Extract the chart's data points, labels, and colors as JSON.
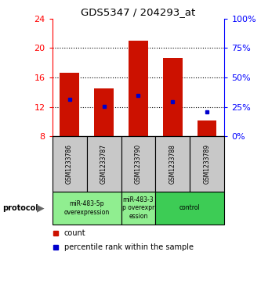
{
  "title": "GDS5347 / 204293_at",
  "samples": [
    "GSM1233786",
    "GSM1233787",
    "GSM1233790",
    "GSM1233788",
    "GSM1233789"
  ],
  "bar_bottom": 8,
  "bar_tops": [
    16.6,
    14.5,
    21.0,
    18.6,
    10.2
  ],
  "percentile_values": [
    13.0,
    12.05,
    13.55,
    12.75,
    11.35
  ],
  "ylim": [
    8,
    24
  ],
  "yticks_left": [
    8,
    12,
    16,
    20,
    24
  ],
  "yticks_right": [
    0,
    25,
    50,
    75,
    100
  ],
  "bar_color": "#CC1100",
  "percentile_color": "#0000CC",
  "xlabel_bg": "#C8C8C8",
  "bar_width": 0.55,
  "groups": [
    {
      "label": "miR-483-5p\noverexpression",
      "indices": [
        0,
        1
      ],
      "color": "#90EE90"
    },
    {
      "label": "miR-483-3\np overexpr\nession",
      "indices": [
        2
      ],
      "color": "#90EE90"
    },
    {
      "label": "control",
      "indices": [
        3,
        4
      ],
      "color": "#3DCC55"
    }
  ],
  "legend_count_label": "count",
  "legend_percentile_label": "percentile rank within the sample",
  "protocol_label": "protocol"
}
